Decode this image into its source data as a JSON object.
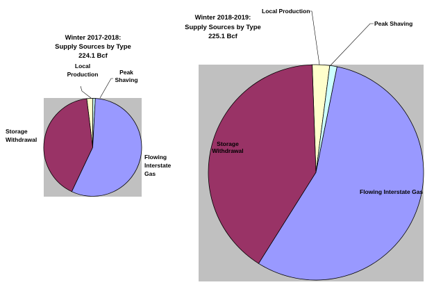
{
  "chart_data": [
    {
      "type": "pie",
      "title": [
        "Winter 2017-2018:",
        "Supply Sources by Type",
        "224.1 Bcf"
      ],
      "unit": "percent",
      "slices": [
        {
          "label": "Local Production",
          "value": 2.0,
          "color": "#FFFFCC"
        },
        {
          "label": "Peak Shaving",
          "value": 0.8,
          "color": "#CCFFFF"
        },
        {
          "label": "Flowing Interstate Gas",
          "value": 56.2,
          "color": "#9999FF"
        },
        {
          "label": "Storage Withdrawal",
          "value": 41.0,
          "color": "#993366"
        }
      ],
      "background": "#C0C0C0"
    },
    {
      "type": "pie",
      "title": [
        "Winter 2018-2019:",
        "Supply Sources by Type",
        "225.1 Bcf"
      ],
      "unit": "percent",
      "slices": [
        {
          "label": "Local Production",
          "value": 2.6,
          "color": "#FFFFCC"
        },
        {
          "label": "Peak Shaving",
          "value": 1.1,
          "color": "#CCFFFF"
        },
        {
          "label": "Flowing Interstate Gas",
          "value": 55.8,
          "color": "#9999FF"
        },
        {
          "label": "Storage Withdrawal",
          "value": 40.5,
          "color": "#993366"
        }
      ],
      "background": "#C0C0C0"
    }
  ]
}
